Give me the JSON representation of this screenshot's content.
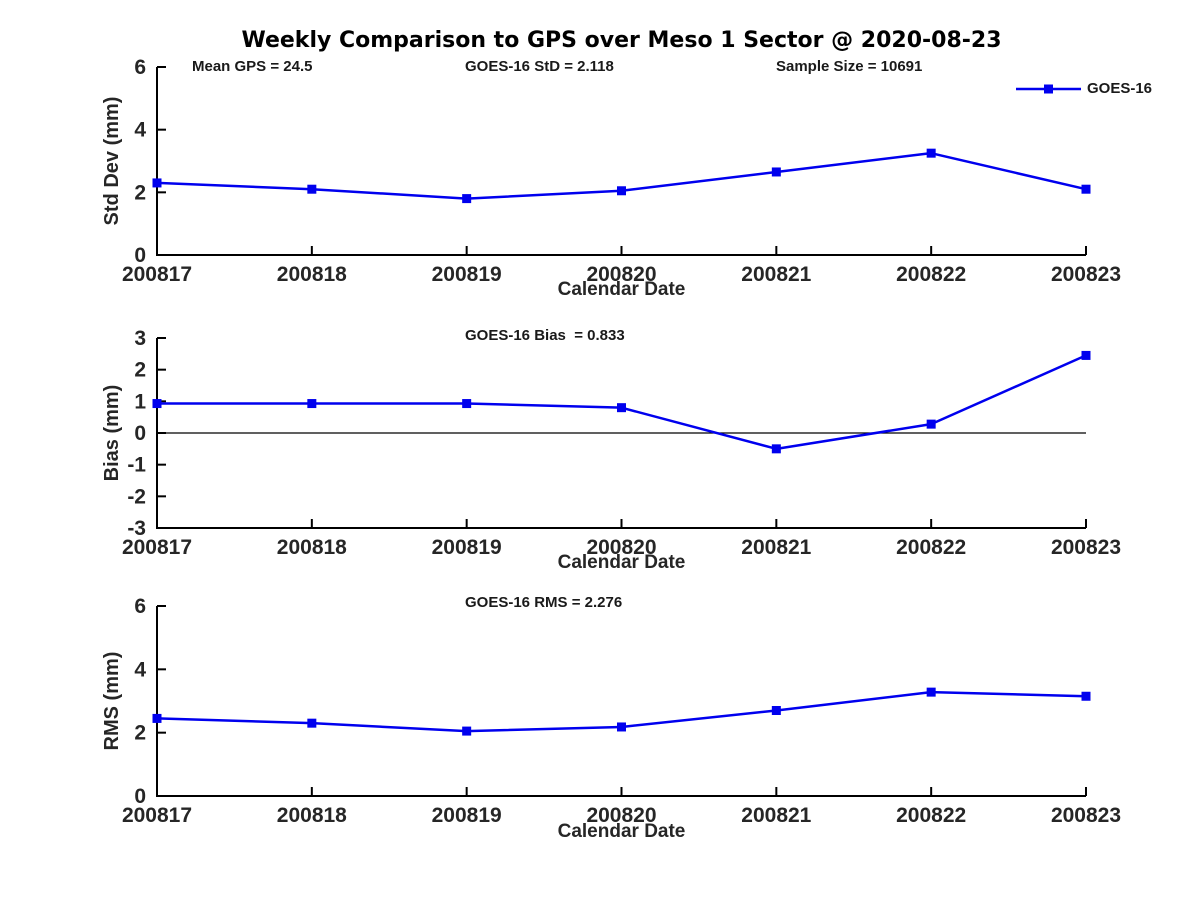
{
  "title": "Weekly Comparison to GPS over Meso 1 Sector @ 2020-08-23",
  "legend": {
    "label": "GOES-16"
  },
  "colors": {
    "series": "#0000EE",
    "axis": "#000000",
    "zero_line": "#000000",
    "tick_text": "#262626"
  },
  "chart_data": [
    {
      "type": "line",
      "name": "std-dev-panel",
      "x": [
        "200817",
        "200818",
        "200819",
        "200820",
        "200821",
        "200822",
        "200823"
      ],
      "series": [
        {
          "name": "GOES-16",
          "values": [
            2.3,
            2.1,
            1.8,
            2.05,
            2.65,
            3.25,
            2.1
          ]
        }
      ],
      "xlabel": "Calendar Date",
      "ylabel": "Std Dev (mm)",
      "ylim": [
        0,
        6
      ],
      "yticks": [
        0,
        2,
        4,
        6
      ],
      "grid": false,
      "legend_position": "top-right",
      "annotations": [
        "Mean GPS = 24.5",
        "GOES-16 StD = 2.118",
        "Sample Size = 10691"
      ]
    },
    {
      "type": "line",
      "name": "bias-panel",
      "x": [
        "200817",
        "200818",
        "200819",
        "200820",
        "200821",
        "200822",
        "200823"
      ],
      "series": [
        {
          "name": "GOES-16",
          "values": [
            0.93,
            0.93,
            0.93,
            0.8,
            -0.5,
            0.28,
            2.45
          ]
        }
      ],
      "xlabel": "Calendar Date",
      "ylabel": "Bias (mm)",
      "ylim": [
        -3,
        3
      ],
      "yticks": [
        -3,
        -2,
        -1,
        0,
        1,
        2,
        3
      ],
      "grid": false,
      "zero_line": true,
      "annotations": [
        "GOES-16 Bias  = 0.833"
      ]
    },
    {
      "type": "line",
      "name": "rms-panel",
      "x": [
        "200817",
        "200818",
        "200819",
        "200820",
        "200821",
        "200822",
        "200823"
      ],
      "series": [
        {
          "name": "GOES-16",
          "values": [
            2.45,
            2.3,
            2.05,
            2.18,
            2.7,
            3.28,
            3.15
          ]
        }
      ],
      "xlabel": "Calendar Date",
      "ylabel": "RMS (mm)",
      "ylim": [
        0,
        6
      ],
      "yticks": [
        0,
        2,
        4,
        6
      ],
      "grid": false,
      "annotations": [
        "GOES-16 RMS = 2.276"
      ]
    }
  ]
}
